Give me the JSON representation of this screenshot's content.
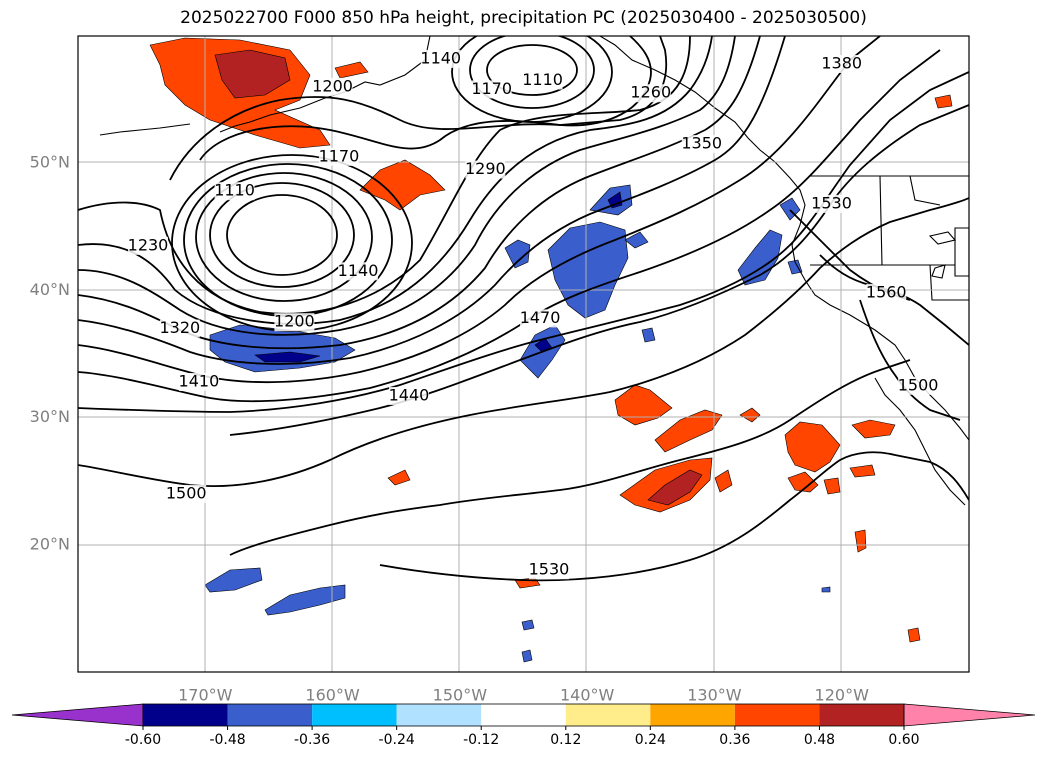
{
  "title": "2025022700 F000 850 hPa height, precipitation PC (2025030400 - 2025030500)",
  "lat_labels": [
    {
      "text": "50°N",
      "lat": 50
    },
    {
      "text": "40°N",
      "lat": 40
    },
    {
      "text": "30°N",
      "lat": 30
    },
    {
      "text": "20°N",
      "lat": 20
    }
  ],
  "lon_labels": [
    {
      "text": "170°W",
      "lon": -170
    },
    {
      "text": "160°W",
      "lon": -160
    },
    {
      "text": "150°W",
      "lon": -150
    },
    {
      "text": "140°W",
      "lon": -140
    },
    {
      "text": "130°W",
      "lon": -130
    },
    {
      "text": "120°W",
      "lon": -120
    }
  ],
  "contour_labels": [
    {
      "text": "1140",
      "lon": -151.5,
      "lat": 58.2
    },
    {
      "text": "1110",
      "lon": -143.5,
      "lat": 56.5
    },
    {
      "text": "1170",
      "lon": -147.5,
      "lat": 55.8
    },
    {
      "text": "1200",
      "lon": -160.0,
      "lat": 56.0
    },
    {
      "text": "1260",
      "lon": -135.0,
      "lat": 55.5
    },
    {
      "text": "1350",
      "lon": -131.0,
      "lat": 51.5
    },
    {
      "text": "1380",
      "lon": -120.0,
      "lat": 57.8
    },
    {
      "text": "1170",
      "lon": -159.5,
      "lat": 50.5
    },
    {
      "text": "1110",
      "lon": -167.7,
      "lat": 47.8
    },
    {
      "text": "1290",
      "lon": -148.0,
      "lat": 49.5
    },
    {
      "text": "1530",
      "lon": -120.8,
      "lat": 46.8
    },
    {
      "text": "1230",
      "lon": -174.5,
      "lat": 43.5
    },
    {
      "text": "1140",
      "lon": -158.0,
      "lat": 41.5
    },
    {
      "text": "1560",
      "lon": -116.5,
      "lat": 39.8
    },
    {
      "text": "1200",
      "lon": -163.0,
      "lat": 37.5
    },
    {
      "text": "1470",
      "lon": -143.7,
      "lat": 37.8
    },
    {
      "text": "1320",
      "lon": -172.0,
      "lat": 37.0
    },
    {
      "text": "1410",
      "lon": -170.5,
      "lat": 32.8
    },
    {
      "text": "1440",
      "lon": -154.0,
      "lat": 31.7
    },
    {
      "text": "1500",
      "lon": -114.0,
      "lat": 32.5
    },
    {
      "text": "1500",
      "lon": -171.5,
      "lat": 24.0
    },
    {
      "text": "1530",
      "lon": -143.0,
      "lat": 18.0
    }
  ],
  "colorbar": {
    "levels": [
      "-0.60",
      "-0.48",
      "-0.36",
      "-0.24",
      "-0.12",
      "0.12",
      "0.24",
      "0.36",
      "0.48",
      "0.60"
    ],
    "colors": [
      "#9932cc",
      "#00008b",
      "#3a5fcd",
      "#00bfff",
      "#b0e2ff",
      "#ffffff",
      "#ffec8b",
      "#ffa500",
      "#ff4500",
      "#b22222",
      "#ff82ab"
    ]
  }
}
